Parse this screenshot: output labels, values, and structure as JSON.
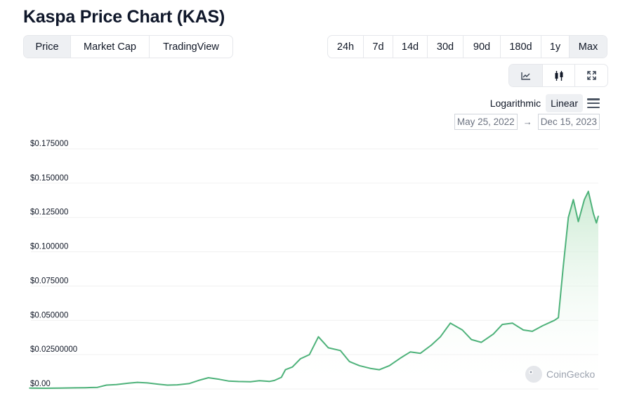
{
  "page_title": "Kaspa Price Chart (KAS)",
  "view_tabs": [
    {
      "label": "Price",
      "active": true
    },
    {
      "label": "Market Cap",
      "active": false
    },
    {
      "label": "TradingView",
      "active": false
    }
  ],
  "range_tabs": [
    {
      "label": "24h",
      "active": false
    },
    {
      "label": "7d",
      "active": false
    },
    {
      "label": "14d",
      "active": false
    },
    {
      "label": "30d",
      "active": false
    },
    {
      "label": "90d",
      "active": false
    },
    {
      "label": "180d",
      "active": false
    },
    {
      "label": "1y",
      "active": false
    },
    {
      "label": "Max",
      "active": true
    }
  ],
  "chart_style_tabs": [
    {
      "icon": "line-chart-icon",
      "active": true
    },
    {
      "icon": "candlestick-icon",
      "active": false
    },
    {
      "icon": "expand-icon",
      "active": false
    }
  ],
  "scale": {
    "logarithmic_label": "Logarithmic",
    "linear_label": "Linear",
    "active": "Linear"
  },
  "date_range": {
    "from": "May 25, 2022",
    "arrow": "→",
    "to": "Dec 15, 2023"
  },
  "watermark": "CoinGecko",
  "colors": {
    "line": "#4eb27a",
    "fill_top": "#c7e9cf",
    "grid": "#f0f0f0"
  },
  "chart_data": {
    "type": "area",
    "title": "Kaspa Price Chart (KAS)",
    "xlabel": "",
    "ylabel": "",
    "x_range": [
      "2022-05-25",
      "2023-12-15"
    ],
    "ylim": [
      0,
      0.175
    ],
    "y_tick_labels": [
      "$0.00",
      "$0.02500000",
      "$0.050000",
      "$0.075000",
      "$0.100000",
      "$0.125000",
      "$0.150000",
      "$0.175000"
    ],
    "y_tick_values": [
      0,
      0.025,
      0.05,
      0.075,
      0.1,
      0.125,
      0.15,
      0.175
    ],
    "grid": true,
    "series": [
      {
        "x": [
          "2022-05-25",
          "2022-06-10",
          "2022-06-25",
          "2022-07-10",
          "2022-07-20",
          "2022-08-01",
          "2022-08-10",
          "2022-08-20",
          "2022-09-01",
          "2022-09-10",
          "2022-09-20",
          "2022-10-01",
          "2022-10-10",
          "2022-10-20",
          "2022-11-01",
          "2022-11-10",
          "2022-11-20",
          "2022-12-01",
          "2022-12-10",
          "2022-12-20",
          "2023-01-01",
          "2023-01-10",
          "2023-01-20",
          "2023-01-25",
          "2023-02-01",
          "2023-02-05",
          "2023-02-12",
          "2023-02-20",
          "2023-03-01",
          "2023-03-10",
          "2023-03-20",
          "2023-04-01",
          "2023-04-10",
          "2023-04-20",
          "2023-05-01",
          "2023-05-10",
          "2023-05-20",
          "2023-06-01",
          "2023-06-10",
          "2023-06-20",
          "2023-07-01",
          "2023-07-10",
          "2023-07-20",
          "2023-08-01",
          "2023-08-10",
          "2023-08-20",
          "2023-09-01",
          "2023-09-10",
          "2023-09-20",
          "2023-10-01",
          "2023-10-10",
          "2023-10-20",
          "2023-11-01",
          "2023-11-05",
          "2023-11-10",
          "2023-11-15",
          "2023-11-20",
          "2023-11-25",
          "2023-12-01",
          "2023-12-05",
          "2023-12-10",
          "2023-12-13",
          "2023-12-15"
        ],
        "values": [
          0.0006,
          0.0005,
          0.0006,
          0.0008,
          0.0009,
          0.0012,
          0.0028,
          0.0032,
          0.0042,
          0.0048,
          0.0044,
          0.0035,
          0.0028,
          0.003,
          0.004,
          0.0062,
          0.0082,
          0.007,
          0.0058,
          0.0054,
          0.0052,
          0.006,
          0.0055,
          0.0062,
          0.0085,
          0.014,
          0.016,
          0.022,
          0.025,
          0.038,
          0.03,
          0.028,
          0.02,
          0.017,
          0.015,
          0.014,
          0.017,
          0.023,
          0.027,
          0.026,
          0.032,
          0.038,
          0.048,
          0.043,
          0.036,
          0.034,
          0.04,
          0.047,
          0.048,
          0.043,
          0.042,
          0.046,
          0.05,
          0.052,
          0.09,
          0.125,
          0.138,
          0.122,
          0.138,
          0.144,
          0.128,
          0.121,
          0.126
        ]
      }
    ]
  }
}
